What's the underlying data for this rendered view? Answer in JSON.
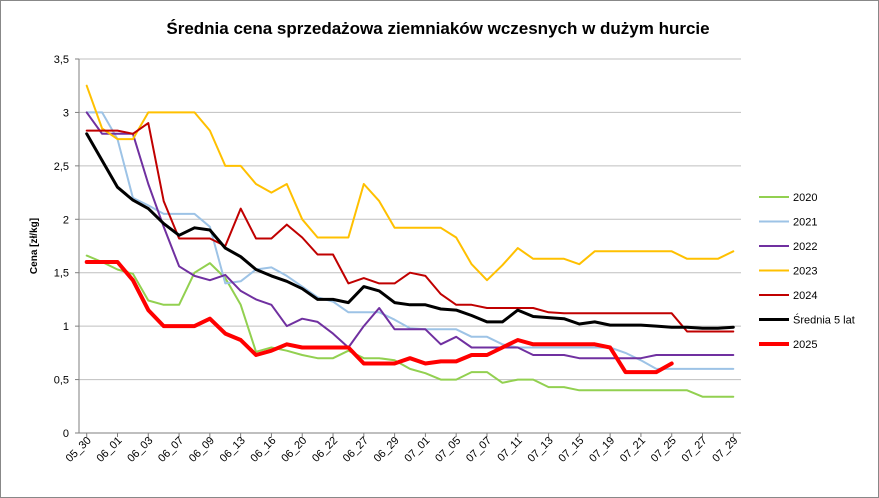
{
  "chart_data": {
    "type": "line",
    "title": "Średnia cena sprzedażowa ziemniaków  wczesnych w dużym hurcie",
    "xlabel": "",
    "ylabel": "Cena [zł/kg]",
    "ylim": [
      0,
      3.5
    ],
    "yticks": [
      "0",
      "0,5",
      "1",
      "1,5",
      "2",
      "2,5",
      "3",
      "3,5"
    ],
    "grid": true,
    "legend_position": "right",
    "x_tick_labels": [
      "05_30",
      "06_01",
      "06_03",
      "06_07",
      "06_09",
      "06_13",
      "06_16",
      "06_20",
      "06_22",
      "06_27",
      "06_29",
      "07_01",
      "07_05",
      "07_07",
      "07_11",
      "07_13",
      "07_15",
      "07_19",
      "07_21",
      "07_25",
      "07_27",
      "07_29"
    ],
    "n_points": 43,
    "series": [
      {
        "name": "2020",
        "color": "#92D050",
        "width": 2,
        "values": [
          1.66,
          1.6,
          1.53,
          1.49,
          1.24,
          1.2,
          1.2,
          1.5,
          1.59,
          1.45,
          1.2,
          0.76,
          0.8,
          0.77,
          0.73,
          0.7,
          0.7,
          0.77,
          0.7,
          0.7,
          0.68,
          0.6,
          0.56,
          0.5,
          0.5,
          0.57,
          0.57,
          0.47,
          0.5,
          0.5,
          0.43,
          0.43,
          0.4,
          0.4,
          0.4,
          0.4,
          0.4,
          0.4,
          0.4,
          0.4,
          0.34,
          0.34,
          0.34
        ]
      },
      {
        "name": "2021",
        "color": "#9DC3E6",
        "width": 2,
        "values": [
          3.0,
          3.0,
          2.75,
          2.2,
          2.13,
          2.05,
          2.05,
          2.05,
          1.93,
          1.4,
          1.42,
          1.53,
          1.55,
          1.47,
          1.37,
          1.27,
          1.23,
          1.13,
          1.13,
          1.13,
          1.06,
          0.98,
          0.97,
          0.97,
          0.97,
          0.9,
          0.9,
          0.83,
          0.8,
          0.8,
          0.8,
          0.8,
          0.8,
          0.8,
          0.8,
          0.75,
          0.68,
          0.6,
          0.6,
          0.6,
          0.6,
          0.6,
          0.6
        ]
      },
      {
        "name": "2022",
        "color": "#7030A0",
        "width": 2,
        "values": [
          3.0,
          2.8,
          2.8,
          2.8,
          2.33,
          1.93,
          1.56,
          1.47,
          1.43,
          1.48,
          1.33,
          1.25,
          1.2,
          1.0,
          1.07,
          1.04,
          0.93,
          0.8,
          1.0,
          1.17,
          0.97,
          0.97,
          0.97,
          0.83,
          0.9,
          0.8,
          0.8,
          0.8,
          0.8,
          0.73,
          0.73,
          0.73,
          0.7,
          0.7,
          0.7,
          0.7,
          0.7,
          0.73,
          0.73,
          0.73,
          0.73,
          0.73,
          0.73
        ]
      },
      {
        "name": "2023",
        "color": "#FFC000",
        "width": 2,
        "values": [
          3.25,
          2.85,
          2.75,
          2.75,
          3.0,
          3.0,
          3.0,
          3.0,
          2.83,
          2.5,
          2.5,
          2.33,
          2.25,
          2.33,
          2.0,
          1.83,
          1.83,
          1.83,
          2.33,
          2.17,
          1.92,
          1.92,
          1.92,
          1.92,
          1.83,
          1.58,
          1.43,
          1.57,
          1.73,
          1.63,
          1.63,
          1.63,
          1.58,
          1.7,
          1.7,
          1.7,
          1.7,
          1.7,
          1.7,
          1.63,
          1.63,
          1.63,
          1.7
        ]
      },
      {
        "name": "2024",
        "color": "#C00000",
        "width": 2,
        "values": [
          2.83,
          2.83,
          2.83,
          2.8,
          2.9,
          2.17,
          1.82,
          1.82,
          1.82,
          1.75,
          2.1,
          1.82,
          1.82,
          1.95,
          1.83,
          1.67,
          1.67,
          1.4,
          1.45,
          1.4,
          1.4,
          1.5,
          1.47,
          1.3,
          1.2,
          1.2,
          1.17,
          1.17,
          1.17,
          1.17,
          1.13,
          1.12,
          1.12,
          1.12,
          1.12,
          1.12,
          1.12,
          1.12,
          1.12,
          0.95,
          0.95,
          0.95,
          0.95
        ]
      },
      {
        "name": "Średnia 5 lat",
        "color": "#000000",
        "width": 3,
        "values": [
          2.8,
          2.55,
          2.3,
          2.18,
          2.1,
          1.96,
          1.85,
          1.92,
          1.9,
          1.73,
          1.65,
          1.53,
          1.47,
          1.42,
          1.35,
          1.25,
          1.25,
          1.22,
          1.37,
          1.33,
          1.22,
          1.2,
          1.2,
          1.16,
          1.15,
          1.1,
          1.04,
          1.04,
          1.15,
          1.09,
          1.08,
          1.07,
          1.02,
          1.04,
          1.01,
          1.01,
          1.01,
          1.0,
          0.99,
          0.99,
          0.98,
          0.98,
          0.99
        ]
      },
      {
        "name": "2025",
        "color": "#FF0000",
        "width": 4,
        "values": [
          1.6,
          1.6,
          1.6,
          1.43,
          1.15,
          1.0,
          1.0,
          1.0,
          1.07,
          0.93,
          0.87,
          0.73,
          0.77,
          0.83,
          0.8,
          0.8,
          0.8,
          0.8,
          0.65,
          0.65,
          0.65,
          0.7,
          0.65,
          0.67,
          0.67,
          0.73,
          0.73,
          0.8,
          0.87,
          0.83,
          0.83,
          0.83,
          0.83,
          0.83,
          0.8,
          0.57,
          0.57,
          0.57,
          0.65,
          null,
          null,
          null,
          null
        ]
      }
    ]
  }
}
